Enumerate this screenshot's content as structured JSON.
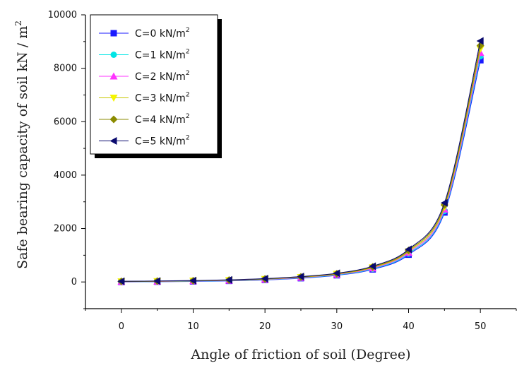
{
  "chart_data": {
    "type": "line",
    "xlabel": "Angle of friction of soil (Degree)",
    "ylabel_main": "Safe bearing capacity of soil kN / m",
    "ylabel_sup": "2",
    "x": [
      0,
      5,
      10,
      15,
      20,
      25,
      30,
      35,
      40,
      45,
      50
    ],
    "xlim": [
      -5,
      55
    ],
    "ylim": [
      -1000,
      10000
    ],
    "xticks": [
      0,
      10,
      20,
      30,
      40,
      50
    ],
    "xtick_labels": [
      "0",
      "10",
      "20",
      "30",
      "40",
      "50"
    ],
    "yticks": [
      0,
      2000,
      4000,
      6000,
      8000,
      10000
    ],
    "ytick_labels": [
      "0",
      "2000",
      "4000",
      "6000",
      "8000",
      "10000"
    ],
    "legend_position": "top-left",
    "grid": false,
    "series": [
      {
        "name": "C=0 kN/m",
        "name_sup": "2",
        "color": "#1a1aff",
        "marker": "square",
        "values": [
          0,
          10,
          20,
          40,
          75,
          140,
          250,
          470,
          1020,
          2600,
          8300
        ]
      },
      {
        "name": "C=1 kN/m",
        "name_sup": "2",
        "color": "#00e5e5",
        "marker": "circle",
        "values": [
          5,
          15,
          28,
          48,
          85,
          155,
          265,
          490,
          1060,
          2660,
          8450
        ]
      },
      {
        "name": "C=2 kN/m",
        "name_sup": "2",
        "color": "#ff33ff",
        "marker": "triangle-up",
        "values": [
          10,
          20,
          35,
          55,
          95,
          165,
          280,
          515,
          1100,
          2720,
          8580
        ]
      },
      {
        "name": "C=3 kN/m",
        "name_sup": "2",
        "color": "#f5f500",
        "marker": "triangle-down",
        "values": [
          15,
          25,
          40,
          62,
          105,
          178,
          295,
          540,
          1140,
          2800,
          8720
        ]
      },
      {
        "name": "C=4 kN/m",
        "name_sup": "2",
        "color": "#8b8b00",
        "marker": "diamond",
        "values": [
          20,
          30,
          45,
          70,
          115,
          190,
          310,
          565,
          1180,
          2880,
          8850
        ]
      },
      {
        "name": "C=5 kN/m",
        "name_sup": "2",
        "color": "#0a0a6e",
        "marker": "triangle-left",
        "values": [
          25,
          35,
          52,
          78,
          125,
          202,
          325,
          590,
          1220,
          2960,
          9020
        ]
      }
    ]
  }
}
